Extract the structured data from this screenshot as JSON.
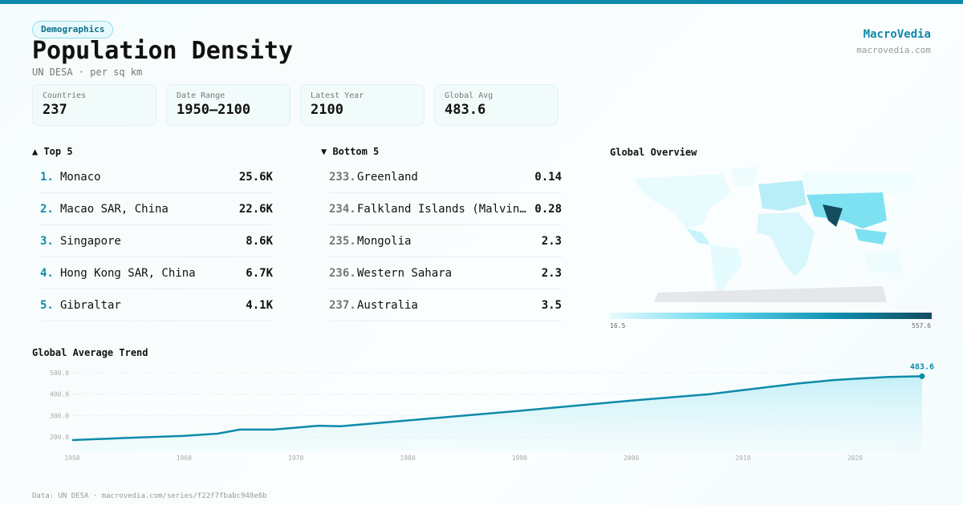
{
  "badge": "Demographics",
  "title": "Population Density",
  "subtitle": "UN DESA · per sq km",
  "brand": {
    "name": "MacroVedia",
    "url": "macrovedia.com"
  },
  "stats": [
    {
      "label": "Countries",
      "value": "237"
    },
    {
      "label": "Date Range",
      "value": "1950–2100"
    },
    {
      "label": "Latest Year",
      "value": "2100"
    },
    {
      "label": "Global Avg",
      "value": "483.6"
    }
  ],
  "top": {
    "title": "▲ Top 5",
    "items": [
      {
        "rank": "1.",
        "name": "Monaco",
        "value": "25.6K"
      },
      {
        "rank": "2.",
        "name": "Macao SAR, China",
        "value": "22.6K"
      },
      {
        "rank": "3.",
        "name": "Singapore",
        "value": "8.6K"
      },
      {
        "rank": "4.",
        "name": "Hong Kong SAR, China",
        "value": "6.7K"
      },
      {
        "rank": "5.",
        "name": "Gibraltar",
        "value": "4.1K"
      }
    ]
  },
  "bottom": {
    "title": "▼ Bottom 5",
    "items": [
      {
        "rank": "233.",
        "name": "Greenland",
        "value": "0.14"
      },
      {
        "rank": "234.",
        "name": "Falkland Islands (Malvinas)",
        "value": "0.28"
      },
      {
        "rank": "235.",
        "name": "Mongolia",
        "value": "2.3"
      },
      {
        "rank": "236.",
        "name": "Western Sahara",
        "value": "2.3"
      },
      {
        "rank": "237.",
        "name": "Australia",
        "value": "3.5"
      }
    ]
  },
  "map": {
    "title": "Global Overview",
    "legend_min": "16.5",
    "legend_max": "557.6",
    "colors": [
      "#e6fbfd",
      "#5fd6ec",
      "#0f8fb0",
      "#134d5e"
    ]
  },
  "footer": "Data: UN DESA · macrovedia.com/series/f22f7fbabc948e6b",
  "chart_data": {
    "type": "area",
    "title": "Global Average Trend",
    "x": [
      1950,
      1955,
      1960,
      1963,
      1965,
      1968,
      1972,
      1974,
      1980,
      1990,
      2000,
      2007,
      2010,
      2015,
      2018,
      2020,
      2023,
      2026
    ],
    "y": [
      185,
      195,
      205,
      215,
      234,
      234,
      252,
      250,
      277,
      322,
      370,
      400,
      419,
      450,
      465,
      472,
      480,
      483.6
    ],
    "xticks": [
      "1950",
      "1960",
      "1970",
      "1980",
      "1990",
      "2000",
      "2010",
      "2020"
    ],
    "yticks": [
      "200.0",
      "300.0",
      "400.0",
      "500.0"
    ],
    "xlim": [
      1950,
      2026
    ],
    "ylim": [
      170,
      510
    ],
    "end_label": "483.6",
    "grid": true,
    "color": "#0e8aaa"
  }
}
